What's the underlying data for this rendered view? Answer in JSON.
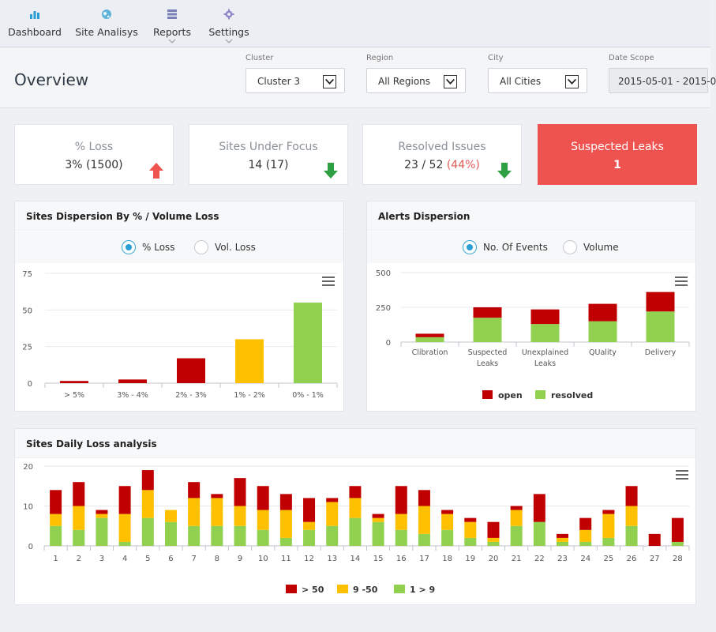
{
  "nav": {
    "items": [
      {
        "label": "Dashboard",
        "icon": "bar-chart-icon"
      },
      {
        "label": "Site Analisys",
        "icon": "globe-icon"
      },
      {
        "label": "Reports",
        "icon": "server-icon"
      },
      {
        "label": "Settings",
        "icon": "gear-icon"
      }
    ]
  },
  "header": {
    "title": "Overview",
    "filters": {
      "cluster": {
        "label": "Cluster",
        "value": "Cluster 3"
      },
      "region": {
        "label": "Region",
        "value": "All Regions"
      },
      "city": {
        "label": "City",
        "value": "All Cities"
      },
      "date": {
        "label": "Date Scope",
        "value": "2015-05-01 - 2015-0"
      }
    }
  },
  "kpis": {
    "loss": {
      "title": "% Loss",
      "value": "3% (1500)",
      "trend": "up"
    },
    "focus": {
      "title": "Sites Under Focus",
      "value": "14 (17)",
      "trend": "down"
    },
    "resolved": {
      "title": "Resolved Issues",
      "value": "23 / 52",
      "pct": "(44%)",
      "trend": "down"
    },
    "leaks": {
      "title": "Suspected Leaks",
      "value": "1"
    }
  },
  "colors": {
    "red": "#c00000",
    "yellow": "#ffc000",
    "green": "#92d050",
    "accent": "#2a9fd6",
    "alert": "#ef5350"
  },
  "panels": {
    "dispersion": {
      "title": "Sites Dispersion By % / Volume Loss",
      "radio1": "% Loss",
      "radio2": "Vol. Loss"
    },
    "alerts": {
      "title": "Alerts Dispersion",
      "radio1": "No. Of Events",
      "radio2": "Volume"
    },
    "daily": {
      "title": "Sites Daily Loss analysis"
    }
  },
  "chart_data": [
    {
      "type": "bar",
      "categories": [
        "> 5%",
        "3% - 4%",
        "2% - 3%",
        "1% - 2%",
        "0% - 1%"
      ],
      "values": [
        1.5,
        2.5,
        17,
        30,
        55
      ],
      "colors": [
        "#c00000",
        "#c00000",
        "#c00000",
        "#ffc000",
        "#92d050"
      ],
      "yticks": [
        0,
        25,
        50,
        75
      ],
      "ylim": [
        0,
        75
      ]
    },
    {
      "type": "bar",
      "stacked": true,
      "categories": [
        [
          "Clibration"
        ],
        [
          "Suspected",
          "Leaks"
        ],
        [
          "Unexplained",
          "Leaks"
        ],
        [
          "QUality"
        ],
        [
          "Delivery"
        ]
      ],
      "series": [
        {
          "name": "resolved",
          "color": "#92d050",
          "values": [
            35,
            175,
            130,
            150,
            220
          ]
        },
        {
          "name": "open",
          "color": "#c00000",
          "values": [
            25,
            75,
            105,
            125,
            140
          ]
        }
      ],
      "legend_order": [
        "open",
        "resolved"
      ],
      "yticks": [
        0,
        250,
        500
      ],
      "ylim": [
        0,
        500
      ]
    },
    {
      "type": "bar",
      "stacked": true,
      "categories": [
        "1",
        "2",
        "3",
        "4",
        "5",
        "6",
        "7",
        "8",
        "9",
        "10",
        "11",
        "12",
        "13",
        "14",
        "15",
        "16",
        "17",
        "18",
        "19",
        "20",
        "21",
        "22",
        "23",
        "24",
        "25",
        "26",
        "27",
        "28"
      ],
      "series": [
        {
          "name": "1 > 9",
          "color": "#92d050",
          "values": [
            5,
            4,
            7,
            1,
            7,
            6,
            5,
            5,
            5,
            4,
            2,
            4,
            5,
            7,
            6,
            4,
            3,
            4,
            2,
            1,
            5,
            6,
            1,
            1,
            2,
            5,
            0,
            1
          ]
        },
        {
          "name": "9 -50",
          "color": "#ffc000",
          "values": [
            3,
            6,
            1,
            7,
            7,
            3,
            7,
            7,
            5,
            5,
            7,
            2,
            6,
            5,
            1,
            4,
            7,
            4,
            4,
            1,
            4,
            0,
            1,
            3,
            6,
            5,
            0,
            0
          ]
        },
        {
          "name": "> 50",
          "color": "#c00000",
          "values": [
            6,
            6,
            1,
            7,
            5,
            0,
            4,
            1,
            7,
            6,
            4,
            6,
            1,
            3,
            1,
            7,
            4,
            1,
            1,
            4,
            1,
            7,
            1,
            3,
            1,
            5,
            3,
            6
          ]
        }
      ],
      "legend_order": [
        "> 50",
        "9 -50",
        "1 > 9"
      ],
      "yticks": [
        0,
        10,
        20
      ],
      "ylim": [
        0,
        20
      ]
    }
  ]
}
